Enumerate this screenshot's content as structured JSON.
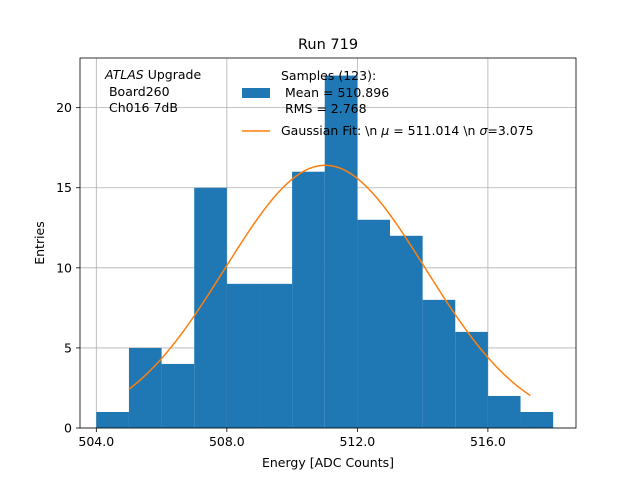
{
  "chart_data": {
    "type": "bar",
    "title": "Run 719",
    "xlabel": "Energy [ADC Counts]",
    "ylabel": "Entries",
    "xlim": [
      503.5,
      518.7
    ],
    "ylim": [
      0,
      23.1
    ],
    "grid": true,
    "legend_placement": "top-right",
    "x_ticks": [
      {
        "value": 504,
        "label": "504.0"
      },
      {
        "value": 508,
        "label": "508.0"
      },
      {
        "value": 512,
        "label": "512.0"
      },
      {
        "value": 516,
        "label": "516.0"
      }
    ],
    "y_ticks": [
      {
        "value": 0,
        "label": "0"
      },
      {
        "value": 5,
        "label": "5"
      },
      {
        "value": 10,
        "label": "10"
      },
      {
        "value": 15,
        "label": "15"
      },
      {
        "value": 20,
        "label": "20"
      }
    ],
    "histogram": {
      "name": "Samples (123):",
      "color": "#1f77b4",
      "bins": [
        {
          "x0": 504,
          "x1": 505,
          "value": 1
        },
        {
          "x0": 505,
          "x1": 506,
          "value": 5
        },
        {
          "x0": 506,
          "x1": 507,
          "value": 4
        },
        {
          "x0": 507,
          "x1": 508,
          "value": 15
        },
        {
          "x0": 508,
          "x1": 509,
          "value": 9
        },
        {
          "x0": 509,
          "x1": 510,
          "value": 9
        },
        {
          "x0": 510,
          "x1": 511,
          "value": 16
        },
        {
          "x0": 511,
          "x1": 512,
          "value": 22
        },
        {
          "x0": 512,
          "x1": 513,
          "value": 13
        },
        {
          "x0": 513,
          "x1": 514,
          "value": 12
        },
        {
          "x0": 514,
          "x1": 515,
          "value": 8
        },
        {
          "x0": 515,
          "x1": 516,
          "value": 6
        },
        {
          "x0": 516,
          "x1": 517,
          "value": 2
        },
        {
          "x0": 517,
          "x1": 518,
          "value": 1
        }
      ]
    },
    "fit": {
      "name": "Gaussian Fit: \\n μ = 511.014 \\n σ=3.075",
      "color": "#ff7f0e",
      "mu": 511.014,
      "sigma": 3.075,
      "amplitude": 16.4,
      "x_range": [
        505.0,
        517.3
      ]
    },
    "legend": {
      "hist_lines": [
        "Samples (123):",
        " Mean = 510.896",
        " RMS = 2.768"
      ],
      "fit_prefix": "Gaussian Fit: \\n ",
      "fit_mu": " = 511.014 \\n ",
      "fit_sigma": "=3.075",
      "mu_symbol": "μ",
      "sigma_symbol": "σ"
    },
    "annotation": {
      "italic": "ATLAS",
      "line1_rest": " Upgrade",
      "line2": " Board260",
      "line3": " Ch016 7dB"
    }
  }
}
